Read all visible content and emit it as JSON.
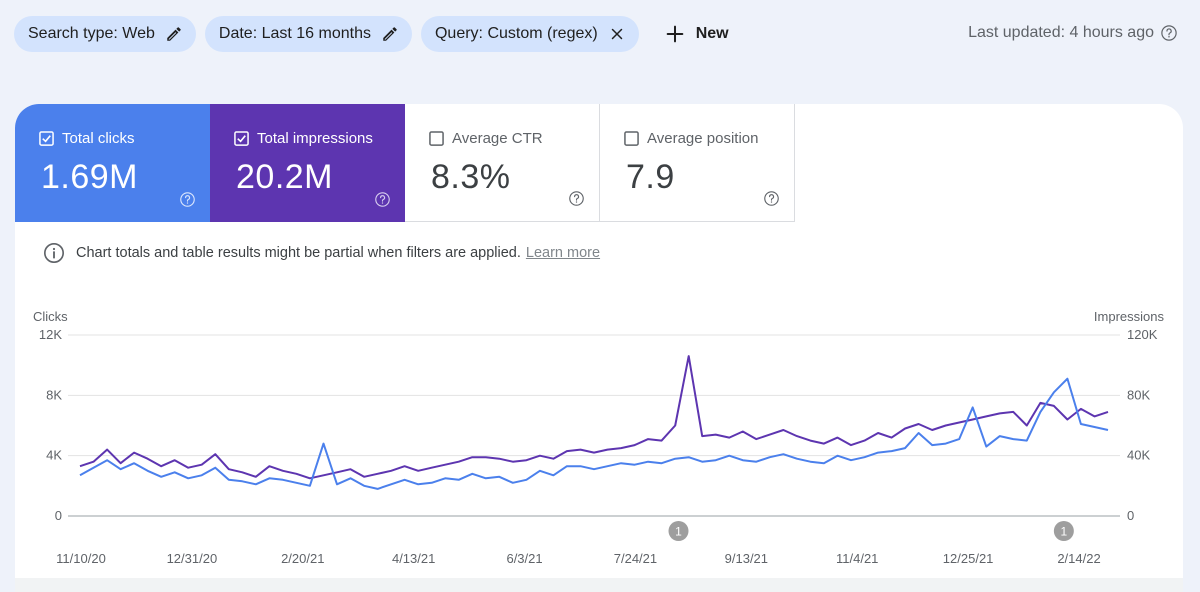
{
  "filters": {
    "chips": [
      {
        "label": "Search type: Web",
        "icon": "pencil-icon"
      },
      {
        "label": "Date: Last 16 months",
        "icon": "pencil-icon"
      },
      {
        "label": "Query: Custom (regex)",
        "icon": "close-icon"
      }
    ],
    "new_label": "New"
  },
  "last_updated": "Last updated: 4 hours ago",
  "metrics": [
    {
      "label": "Total clicks",
      "value": "1.69M",
      "checked": true,
      "color": "#4b80ec"
    },
    {
      "label": "Total impressions",
      "value": "20.2M",
      "checked": true,
      "color": "#5d35b0"
    },
    {
      "label": "Average CTR",
      "value": "8.3%",
      "checked": false
    },
    {
      "label": "Average position",
      "value": "7.9",
      "checked": false
    }
  ],
  "notice": {
    "text": "Chart totals and table results might be partial when filters are applied.",
    "link": "Learn more"
  },
  "chart_data": {
    "type": "line",
    "left_axis_label": "Clicks",
    "right_axis_label": "Impressions",
    "left_ticks": [
      "0",
      "4K",
      "8K",
      "12K"
    ],
    "right_ticks": [
      "0",
      "40K",
      "80K",
      "120K"
    ],
    "ylim_left": [
      0,
      12000
    ],
    "ylim_right": [
      0,
      120000
    ],
    "x_ticks": [
      "11/10/20",
      "12/31/20",
      "2/20/21",
      "4/13/21",
      "6/3/21",
      "7/24/21",
      "9/13/21",
      "11/4/21",
      "12/25/21",
      "2/14/22"
    ],
    "annotations": [
      {
        "label": "1",
        "x": "8/13/21"
      },
      {
        "label": "1",
        "x": "2/7/22"
      }
    ],
    "series": [
      {
        "name": "Total impressions",
        "color": "#5d35b0",
        "axis": "right",
        "values": [
          33000,
          36000,
          44000,
          35000,
          42000,
          38000,
          33000,
          37000,
          32000,
          34000,
          41000,
          31000,
          29000,
          26000,
          33000,
          30000,
          28000,
          25000,
          27000,
          29000,
          31000,
          26000,
          28000,
          30000,
          33000,
          30000,
          32000,
          34000,
          36000,
          39000,
          39000,
          38000,
          36000,
          37000,
          40000,
          38000,
          43000,
          44000,
          42000,
          44000,
          45000,
          47000,
          51000,
          50000,
          60000,
          106000,
          53000,
          54000,
          52000,
          56000,
          51000,
          54000,
          57000,
          53000,
          50000,
          48000,
          52000,
          47000,
          50000,
          55000,
          52000,
          58000,
          61000,
          57000,
          60000,
          62000,
          64000,
          66000,
          68000,
          69000,
          60000,
          75000,
          73000,
          64000,
          71000,
          66000,
          69000
        ]
      },
      {
        "name": "Total clicks",
        "color": "#4b80ec",
        "axis": "left",
        "values": [
          2700,
          3200,
          3700,
          3100,
          3500,
          3000,
          2600,
          2900,
          2500,
          2700,
          3200,
          2400,
          2300,
          2100,
          2500,
          2400,
          2200,
          2000,
          4800,
          2100,
          2500,
          2000,
          1800,
          2100,
          2400,
          2100,
          2200,
          2500,
          2400,
          2800,
          2500,
          2600,
          2200,
          2400,
          3000,
          2700,
          3300,
          3300,
          3100,
          3300,
          3500,
          3400,
          3600,
          3500,
          3800,
          3900,
          3600,
          3700,
          4000,
          3700,
          3600,
          3900,
          4100,
          3800,
          3600,
          3500,
          4000,
          3700,
          3900,
          4200,
          4300,
          4500,
          5500,
          4700,
          4800,
          5100,
          7200,
          4600,
          5300,
          5100,
          5000,
          6900,
          8200,
          9100,
          6100,
          5900,
          5700
        ]
      }
    ]
  }
}
